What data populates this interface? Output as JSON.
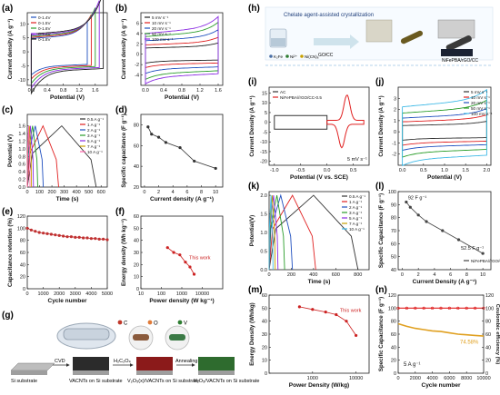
{
  "chart_data": [
    {
      "panel": "a",
      "type": "line",
      "xlabel": "Potential (V)",
      "ylabel": "Current density (A g⁻¹)",
      "xlim": [
        -0.1,
        1.9
      ],
      "ylim": [
        -12,
        14
      ],
      "xticks": [
        "0.0",
        "0.4",
        "0.8",
        "1.2",
        "1.6"
      ],
      "yticks": [
        "-10",
        "-5",
        "0",
        "5",
        "10"
      ],
      "legend_position": "top-left",
      "legend": [
        "0-1.4V",
        "0-1.5V",
        "0-1.6V",
        "0-1.7V",
        "0-1.8V"
      ],
      "series": [
        {
          "name": "0-1.4V",
          "vmax": 1.4,
          "color": "#1f4fbf"
        },
        {
          "name": "0-1.5V",
          "vmax": 1.5,
          "color": "#e02020"
        },
        {
          "name": "0-1.6V",
          "vmax": 1.6,
          "color": "#2a9d2a"
        },
        {
          "name": "0-1.7V",
          "vmax": 1.7,
          "color": "#8a2be2"
        },
        {
          "name": "0-1.8V",
          "vmax": 1.8,
          "color": "#222222"
        }
      ]
    },
    {
      "panel": "b",
      "type": "line",
      "xlabel": "Potential (V)",
      "ylabel": "Current density (A g⁻¹)",
      "xlim": [
        -0.1,
        1.7
      ],
      "ylim": [
        -6,
        8
      ],
      "xticks": [
        "0.0",
        "0.4",
        "0.8",
        "1.2",
        "1.6"
      ],
      "yticks": [
        "-4",
        "-2",
        "0",
        "2",
        "4",
        "6"
      ],
      "legend_position": "top-left",
      "legend": [
        "5 mV s⁻¹",
        "10 mV s⁻¹",
        "20 mV s⁻¹",
        "50 mV s⁻¹",
        "100 mV s⁻¹"
      ],
      "series": [
        {
          "name": "5 mV s⁻¹",
          "scale": 0.3,
          "color": "#222222"
        },
        {
          "name": "10 mV s⁻¹",
          "scale": 0.45,
          "color": "#e02020"
        },
        {
          "name": "20 mV s⁻¹",
          "scale": 0.65,
          "color": "#1f4fbf"
        },
        {
          "name": "50 mV s⁻¹",
          "scale": 0.85,
          "color": "#2a9d2a"
        },
        {
          "name": "100 mV s⁻¹",
          "scale": 1.0,
          "color": "#8a2be2"
        }
      ]
    },
    {
      "panel": "c",
      "type": "line",
      "xlabel": "Time (s)",
      "ylabel": "Potential (V)",
      "xlim": [
        0,
        650
      ],
      "ylim": [
        0,
        1.9
      ],
      "xticks": [
        "0",
        "100",
        "200",
        "300",
        "400",
        "500",
        "600"
      ],
      "yticks": [
        "0.0",
        "0.2",
        "0.4",
        "0.6",
        "0.8",
        "1.0",
        "1.2",
        "1.4",
        "1.6"
      ],
      "legend_position": "top-right",
      "legend": [
        "0.5 A g⁻¹",
        "1 A g⁻¹",
        "2 A g⁻¹",
        "3 A g⁻¹",
        "5 A g⁻¹",
        "7 A g⁻¹",
        "10 A g⁻¹"
      ],
      "series": [
        {
          "name": "0.5 A g⁻¹",
          "t": 560,
          "color": "#333333"
        },
        {
          "name": "1 A g⁻¹",
          "t": 255,
          "color": "#e02020"
        },
        {
          "name": "2 A g⁻¹",
          "t": 130,
          "color": "#1f4fbf"
        },
        {
          "name": "3 A g⁻¹",
          "t": 85,
          "color": "#2a9d2a"
        },
        {
          "name": "5 A g⁻¹",
          "t": 50,
          "color": "#8a2be2"
        },
        {
          "name": "7 A g⁻¹",
          "t": 34,
          "color": "#c8a000"
        },
        {
          "name": "10 A g⁻¹",
          "t": 22,
          "color": "#ff66aa"
        }
      ]
    },
    {
      "panel": "d",
      "type": "scatter",
      "xlabel": "Current density (A g⁻¹)",
      "ylabel": "Specific capacitance (F g⁻¹)",
      "xlim": [
        -0.5,
        11
      ],
      "ylim": [
        20,
        90
      ],
      "xticks": [
        "0",
        "2",
        "4",
        "6",
        "8",
        "10"
      ],
      "yticks": [
        "20",
        "40",
        "60",
        "80"
      ],
      "x": [
        0.5,
        1,
        2,
        3,
        5,
        7,
        10
      ],
      "y": [
        78,
        71,
        68,
        63,
        58,
        45,
        38
      ],
      "color": "#333333"
    },
    {
      "panel": "e",
      "type": "scatter",
      "xlabel": "Cycle number",
      "ylabel": "Capacitance retention (%)",
      "xlim": [
        0,
        5000
      ],
      "ylim": [
        0,
        120
      ],
      "xticks": [
        "0",
        "1000",
        "2000",
        "3000",
        "4000",
        "5000"
      ],
      "yticks": [
        "0",
        "20",
        "40",
        "60",
        "80",
        "100",
        "120"
      ],
      "x": [
        0,
        250,
        500,
        750,
        1000,
        1250,
        1500,
        1750,
        2000,
        2250,
        2500,
        2750,
        3000,
        3250,
        3500,
        3750,
        4000,
        4250,
        4500,
        4750,
        5000
      ],
      "y": [
        100,
        97,
        95,
        93,
        92,
        91,
        90,
        89,
        88,
        87,
        86,
        86,
        85,
        85,
        84,
        84,
        83,
        83,
        82,
        82,
        81
      ],
      "color": "#c03030"
    },
    {
      "panel": "f",
      "type": "scatter",
      "xlabel": "Power density (W kg⁻¹)",
      "ylabel": "Energy density (Wh kg⁻¹)",
      "xscale": "log",
      "xlim": [
        10,
        100000
      ],
      "ylim": [
        0,
        60
      ],
      "xticks": [
        "10",
        "100",
        "1000",
        "10000"
      ],
      "yticks": [
        "0",
        "10",
        "20",
        "30",
        "40",
        "50",
        "60"
      ],
      "x": [
        200,
        400,
        800,
        1500,
        2500,
        4000
      ],
      "y": [
        34,
        30,
        28,
        22,
        18,
        12
      ],
      "annotation": "This work",
      "color": "#cc2222"
    },
    {
      "panel": "i",
      "type": "line",
      "xlabel": "Potential (V vs. SCE)",
      "ylabel": "Current Density (A g⁻¹)",
      "xlim": [
        -1.1,
        0.8
      ],
      "ylim": [
        -22,
        18
      ],
      "xticks": [
        "-1.0",
        "-0.5",
        "0.0",
        "0.5"
      ],
      "yticks": [
        "-20",
        "-15",
        "-10",
        "-5",
        "0",
        "5",
        "10",
        "15"
      ],
      "legend_position": "top-left",
      "legend": [
        "AC",
        "NiFePBA//rGO/CC-0.5"
      ],
      "annotation": "5 mV s⁻¹",
      "series": [
        {
          "name": "AC",
          "color": "#333333"
        },
        {
          "name": "NiFePBA//rGO/CC-0.5",
          "color": "#e02020"
        }
      ]
    },
    {
      "panel": "j",
      "type": "line",
      "xlabel": "Potential (V)",
      "ylabel": "Current Density (A g⁻¹)",
      "xlim": [
        -0.1,
        2.1
      ],
      "ylim": [
        -3,
        4
      ],
      "xticks": [
        "0.0",
        "0.5",
        "1.0",
        "1.5",
        "2.0"
      ],
      "yticks": [
        "-2",
        "-1",
        "0",
        "1",
        "2",
        "3"
      ],
      "legend_position": "top-right",
      "legend": [
        "5 mV s⁻¹",
        "10 mV s⁻¹",
        "20 mV s⁻¹",
        "50 mV s⁻¹",
        "100 mV s⁻¹"
      ],
      "series": [
        {
          "name": "5 mV s⁻¹",
          "scale": 0.25,
          "color": "#333333"
        },
        {
          "name": "10 mV s⁻¹",
          "scale": 0.4,
          "color": "#e02020"
        },
        {
          "name": "20 mV s⁻¹",
          "scale": 0.55,
          "color": "#1f4fbf"
        },
        {
          "name": "50 mV s⁻¹",
          "scale": 0.75,
          "color": "#2a9d2a"
        },
        {
          "name": "100 mV s⁻¹",
          "scale": 1.0,
          "color": "#3fb9e6"
        }
      ]
    },
    {
      "panel": "k",
      "type": "line",
      "xlabel": "Time (s)",
      "ylabel": "Potential(V)",
      "xlim": [
        0,
        900
      ],
      "ylim": [
        0,
        2.1
      ],
      "xticks": [
        "0",
        "200",
        "400",
        "600",
        "800"
      ],
      "yticks": [
        "0.0",
        "0.5",
        "1.0",
        "1.5",
        "2.0"
      ],
      "legend_position": "top-right",
      "legend": [
        "0.5 A g⁻¹",
        "1 A g⁻¹",
        "2 A g⁻¹",
        "3 A g⁻¹",
        "5 A g⁻¹",
        "7 A g⁻¹",
        "10 A g⁻¹"
      ],
      "series": [
        {
          "name": "0.5 A g⁻¹",
          "t": 800,
          "color": "#333333"
        },
        {
          "name": "1 A g⁻¹",
          "t": 420,
          "color": "#e02020"
        },
        {
          "name": "2 A g⁻¹",
          "t": 210,
          "color": "#1f4fbf"
        },
        {
          "name": "3 A g⁻¹",
          "t": 140,
          "color": "#2a9d2a"
        },
        {
          "name": "5 A g⁻¹",
          "t": 80,
          "color": "#8a2be2"
        },
        {
          "name": "7 A g⁻¹",
          "t": 55,
          "color": "#c8a000"
        },
        {
          "name": "10 A g⁻¹",
          "t": 35,
          "color": "#3fb9e6"
        }
      ]
    },
    {
      "panel": "l",
      "type": "line",
      "xlabel": "Current Density (A g⁻¹)",
      "ylabel": "Specific Capacitance (F g⁻¹)",
      "xlim": [
        -0.5,
        11
      ],
      "ylim": [
        40,
        100
      ],
      "xticks": [
        "0",
        "2",
        "4",
        "6",
        "8",
        "10"
      ],
      "yticks": [
        "40",
        "50",
        "60",
        "70",
        "80",
        "90",
        "100"
      ],
      "x": [
        0.5,
        1,
        2,
        3,
        5,
        7,
        10
      ],
      "y": [
        92,
        88,
        82,
        77,
        70,
        63,
        52.5
      ],
      "label_start": "92 F g⁻¹",
      "label_end": "52.5 F g⁻¹",
      "legend": [
        "NiFePBA//rGO/CC-0.5//AC"
      ],
      "legend_position": "bottom-right",
      "color": "#444444"
    },
    {
      "panel": "m",
      "type": "line",
      "xlabel": "Power Density (W/kg)",
      "ylabel": "Energy Density (Wh/kg)",
      "xscale": "log",
      "xlim": [
        100,
        20000
      ],
      "ylim": [
        0,
        60
      ],
      "xticks": [
        "1000",
        "10000"
      ],
      "yticks": [
        "0",
        "10",
        "20",
        "30",
        "40",
        "50",
        "60"
      ],
      "x": [
        500,
        1000,
        2000,
        3500,
        6000,
        10000
      ],
      "y": [
        51,
        49,
        47,
        45,
        40,
        29
      ],
      "annotation": "This work",
      "color": "#cc2222"
    },
    {
      "panel": "n",
      "type": "line",
      "xlabel": "Cycle number",
      "ylabel": "Specific Capacitance (F g⁻¹)",
      "ylabel2": "Coulombic efficiency (%)",
      "xlim": [
        0,
        10000
      ],
      "ylim": [
        0,
        120
      ],
      "y2lim": [
        0,
        120
      ],
      "xticks": [
        "0",
        "2000",
        "4000",
        "6000",
        "8000",
        "10000"
      ],
      "yticks": [
        "0",
        "20",
        "40",
        "60",
        "80",
        "100",
        "120"
      ],
      "y2ticks": [
        "0",
        "20",
        "40",
        "60",
        "80",
        "100",
        "120"
      ],
      "annotation_current": "5 A g⁻¹",
      "annotation_retention": "74.58%",
      "capacitance_x": [
        0,
        1000,
        2000,
        3000,
        4000,
        5000,
        6000,
        7000,
        8000,
        9000,
        10000
      ],
      "capacitance_y": [
        76,
        72,
        69,
        67,
        65,
        64,
        62,
        60,
        59,
        58,
        57
      ],
      "efficiency_y": [
        100,
        100,
        100,
        100,
        100,
        100,
        100,
        100,
        100,
        100,
        100
      ],
      "color_cap": "#e0a020",
      "color_eff": "#e02020"
    }
  ],
  "panels": {
    "a": "(a)",
    "b": "(b)",
    "c": "(c)",
    "d": "(d)",
    "e": "(e)",
    "f": "(f)",
    "g": "(g)",
    "h": "(h)",
    "i": "(i)",
    "j": "(j)",
    "k": "(k)",
    "l": "(l)",
    "m": "(m)",
    "n": "(n)"
  },
  "schematic_g": {
    "legend": [
      "C",
      "O",
      "V"
    ],
    "legend_colors": [
      "#c0392b",
      "#e07b39",
      "#2e7d32"
    ],
    "steps": [
      "CVD",
      "H₂C₂O₄",
      "Annealing"
    ],
    "substrates": [
      "Si substrate",
      "VACNTs on Si substrate",
      "V₂O₅(x)/VACNTs on Si substrate",
      "V₂O₅/VACNTs on Si substrate"
    ]
  },
  "schematic_h": {
    "title": "Chelate agent-assisted crystallization",
    "labels": [
      "GO/CC",
      "NiFePBA/rGO/CC"
    ],
    "legend": [
      "K₂Fe",
      "Ni²⁺",
      "Ni(CN)₆"
    ]
  }
}
